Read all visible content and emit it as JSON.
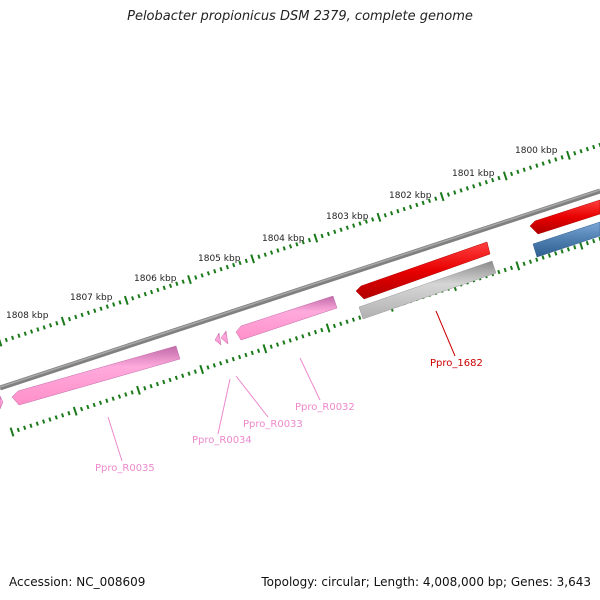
{
  "header": {
    "title": "Pelobacter propionicus DSM 2379, complete genome"
  },
  "footer": {
    "accession": "Accession: NC_008609",
    "summary": "Topology: circular; Length: 4,008,000 bp; Genes: 3,643"
  },
  "scale": {
    "unit": "kbp",
    "labels": [
      "1800 kbp",
      "1801 kbp",
      "1802 kbp",
      "1803 kbp",
      "1804 kbp",
      "1805 kbp",
      "1806 kbp",
      "1807 kbp",
      "1808 kbp"
    ]
  },
  "genes": [
    {
      "name": "Ppro_1682",
      "color": "#cc0000"
    },
    {
      "name": "Ppro_R0032",
      "color": "#ee88cc"
    },
    {
      "name": "Ppro_R0033",
      "color": "#ee88cc"
    },
    {
      "name": "Ppro_R0034",
      "color": "#ee88cc"
    },
    {
      "name": "Ppro_R0035",
      "color": "#ee88cc"
    }
  ],
  "colors": {
    "backbone": "#808080",
    "ticks": "#1a7a1a",
    "cds": "#e80000",
    "rrna": "#ff99cc",
    "gene_shadow": "#b8b8b8",
    "blue_feature": "#4f7fb0"
  }
}
